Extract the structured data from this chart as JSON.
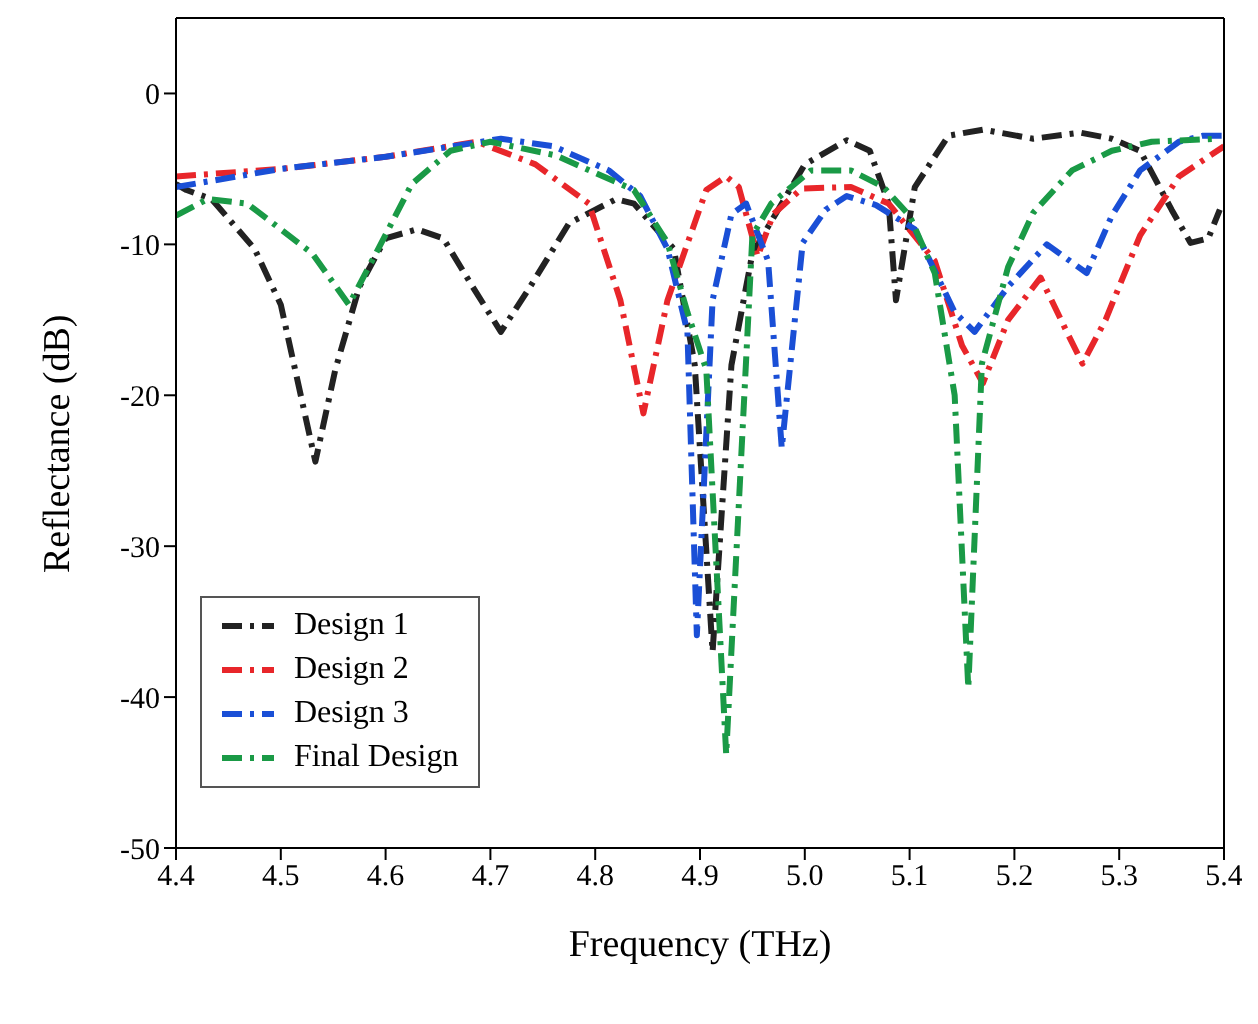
{
  "chart_data": {
    "type": "line",
    "xlabel": "Frequency (THz)",
    "ylabel": "Reflectance (dB)",
    "xlim": [
      4.4,
      5.4
    ],
    "ylim": [
      -50,
      5
    ],
    "xticks": [
      4.4,
      4.5,
      4.6,
      4.7,
      4.8,
      4.9,
      {
        "value": 5,
        "label": "5.0"
      },
      5.1,
      5.2,
      5.3,
      5.4
    ],
    "yticks": [
      -50,
      -40,
      -30,
      -20,
      -10,
      0
    ],
    "legend": "bottom left",
    "line_style": "dashed",
    "marker": "none",
    "series": [
      {
        "name": "Design 1",
        "color": "#222222",
        "x": [
          4.4,
          4.41,
          4.434,
          4.475,
          4.5,
          4.533,
          4.552,
          4.575,
          4.6,
          4.63,
          4.655,
          4.683,
          4.71,
          4.738,
          4.775,
          4.82,
          4.837,
          4.875,
          4.895,
          4.912,
          4.93,
          4.95,
          5.0,
          5.04,
          5.062,
          5.08,
          5.087,
          5.105,
          5.137,
          5.17,
          5.218,
          5.263,
          5.293,
          5.32,
          5.35,
          5.368,
          5.385,
          5.396
        ],
        "values": [
          -6,
          -6.4,
          -7,
          -10.3,
          -14,
          -24.4,
          -18.3,
          -12.8,
          -9.6,
          -9,
          -9.6,
          -12.8,
          -15.8,
          -12.8,
          -8.6,
          -7,
          -7.3,
          -10.3,
          -18,
          -37,
          -18,
          -10.6,
          -4.7,
          -3.1,
          -3.8,
          -7.3,
          -13.7,
          -6.2,
          -2.8,
          -2.4,
          -3,
          -2.6,
          -3,
          -3.8,
          -7.7,
          -9.9,
          -9.6,
          -7.7
        ]
      },
      {
        "name": "Design 2",
        "color": "#e8262a",
        "x": [
          4.4,
          4.5,
          4.6,
          4.687,
          4.743,
          4.794,
          4.824,
          4.846,
          4.869,
          4.906,
          4.925,
          4.937,
          4.955,
          4.97,
          4.997,
          5.044,
          5.08,
          5.124,
          5.15,
          5.17,
          5.194,
          5.225,
          5.25,
          5.265,
          5.287,
          5.32,
          5.357,
          5.4
        ],
        "values": [
          -5.5,
          -5,
          -4.2,
          -3.2,
          -4.7,
          -7.3,
          -13.7,
          -21.2,
          -13.7,
          -6.4,
          -5.5,
          -6.2,
          -10.8,
          -8,
          -6.3,
          -6.2,
          -7.3,
          -11.1,
          -16.7,
          -19.2,
          -15,
          -12.2,
          -15.8,
          -17.9,
          -15,
          -9.4,
          -5.5,
          -3.5
        ]
      },
      {
        "name": "Design 3",
        "color": "#1a4fd6",
        "x": [
          4.4,
          4.5,
          4.6,
          4.71,
          4.76,
          4.813,
          4.843,
          4.869,
          4.888,
          4.897,
          4.912,
          4.93,
          4.944,
          4.965,
          4.978,
          4.998,
          5.02,
          5.04,
          5.068,
          5.105,
          5.143,
          5.162,
          5.194,
          5.231,
          5.269,
          5.293,
          5.32,
          5.357,
          5.38,
          5.4
        ],
        "values": [
          -6.2,
          -5,
          -4.2,
          -3,
          -3.5,
          -5.1,
          -6.8,
          -10.3,
          -15.8,
          -35.9,
          -13.7,
          -8,
          -7.3,
          -11.1,
          -23.5,
          -9.9,
          -7.7,
          -6.8,
          -7.4,
          -9,
          -14.5,
          -15.8,
          -12.8,
          -10,
          -11.9,
          -8.1,
          -5.1,
          -3.2,
          -2.8,
          -2.8
        ]
      },
      {
        "name": "Final Design",
        "color": "#1a9a46",
        "x": [
          4.4,
          4.43,
          4.468,
          4.53,
          4.565,
          4.593,
          4.625,
          4.662,
          4.7,
          4.762,
          4.837,
          4.869,
          4.888,
          4.906,
          4.925,
          4.95,
          4.968,
          5.006,
          5.044,
          5.075,
          5.1,
          5.124,
          5.143,
          5.156,
          5.169,
          5.194,
          5.218,
          5.255,
          5.293,
          5.331,
          5.394
        ],
        "values": [
          -8.1,
          -7,
          -7.3,
          -10.6,
          -14,
          -10.3,
          -6,
          -3.8,
          -3.2,
          -4.1,
          -6.4,
          -9.9,
          -14.5,
          -18.3,
          -43.8,
          -9.4,
          -7.3,
          -5.1,
          -5.1,
          -6.2,
          -8.1,
          -11.9,
          -20,
          -39.4,
          -17.9,
          -11.5,
          -7.9,
          -5.1,
          -3.8,
          -3.2,
          -3
        ]
      }
    ]
  }
}
